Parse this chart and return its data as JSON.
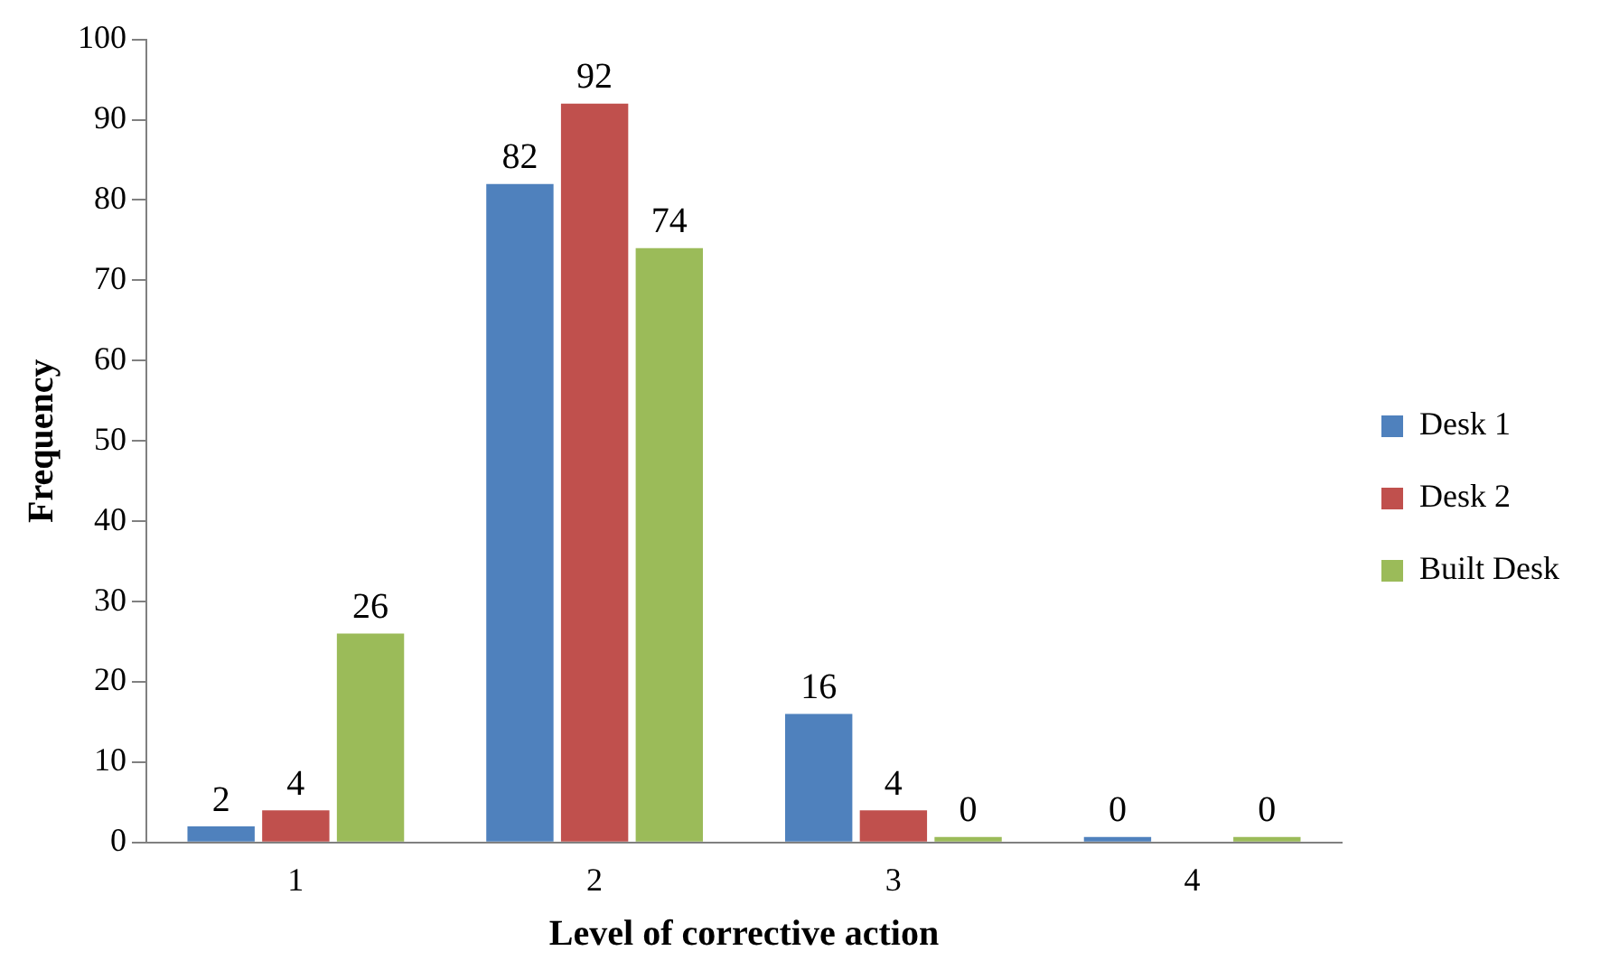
{
  "chart_data": {
    "type": "bar",
    "xlabel": "Level of corrective action",
    "ylabel": "Frequency",
    "categories": [
      "1",
      "2",
      "3",
      "4"
    ],
    "series": [
      {
        "name": "Desk 1",
        "color": "#4f81bd",
        "values": [
          2,
          82,
          16,
          0
        ]
      },
      {
        "name": "Desk 2",
        "color": "#c0504d",
        "values": [
          4,
          92,
          4,
          null
        ]
      },
      {
        "name": "Built Desk",
        "color": "#9bbb59",
        "values": [
          26,
          74,
          0,
          0
        ]
      }
    ],
    "ylim": [
      0,
      100
    ],
    "yticks": [
      0,
      10,
      20,
      30,
      40,
      50,
      60,
      70,
      80,
      90,
      100
    ],
    "grid": false,
    "legend": "right",
    "data_labels": true
  }
}
